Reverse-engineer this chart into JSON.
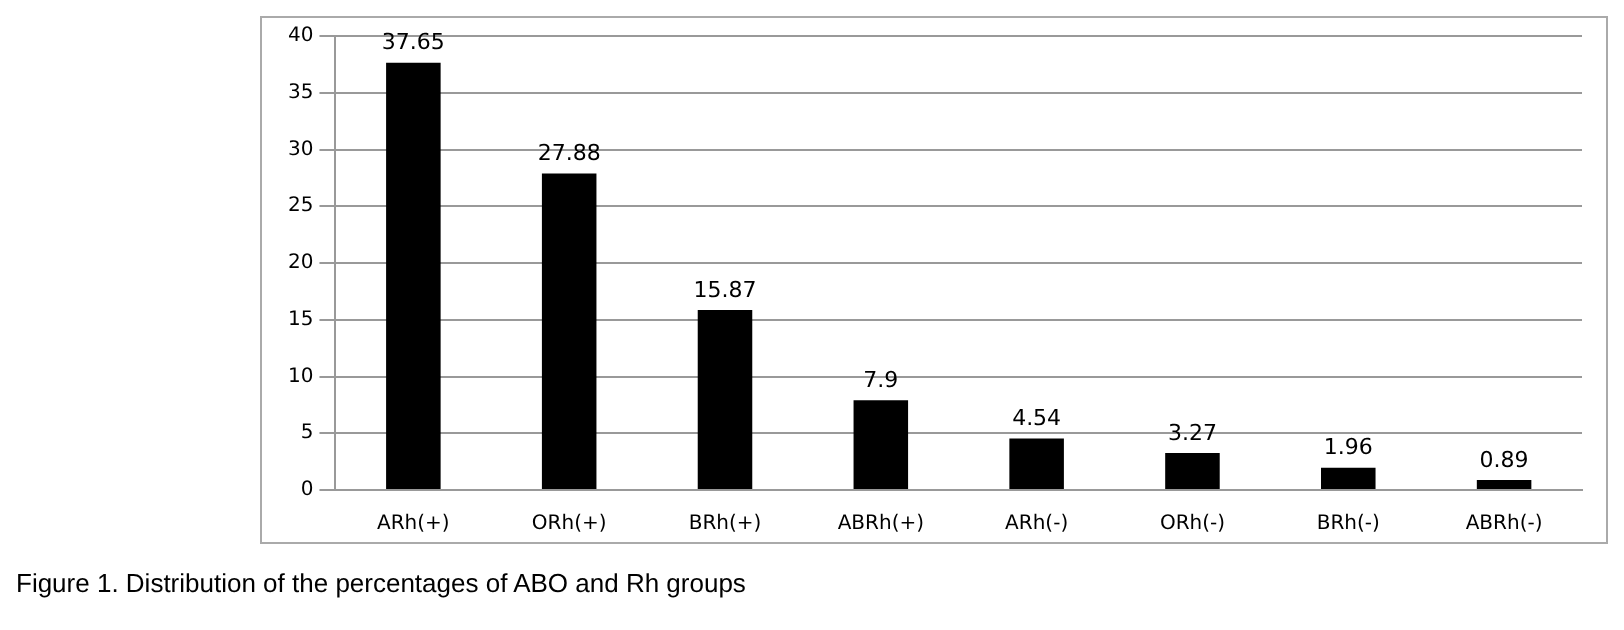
{
  "chart_data": {
    "type": "bar",
    "categories": [
      "ARh(+)",
      "ORh(+)",
      "BRh(+)",
      "ABRh(+)",
      "ARh(-)",
      "ORh(-)",
      "BRh(-)",
      "ABRh(-)"
    ],
    "values": [
      37.65,
      27.88,
      15.87,
      7.9,
      4.54,
      3.27,
      1.96,
      0.89
    ],
    "color": "#000000",
    "ylim": [
      0,
      40
    ],
    "yticks": [
      0,
      5,
      10,
      15,
      20,
      25,
      30,
      35,
      40
    ],
    "grid": "y",
    "data_labels": true,
    "annotations": [
      "Figure 1. Distribution of the percentages of ABO and Rh groups"
    ]
  }
}
